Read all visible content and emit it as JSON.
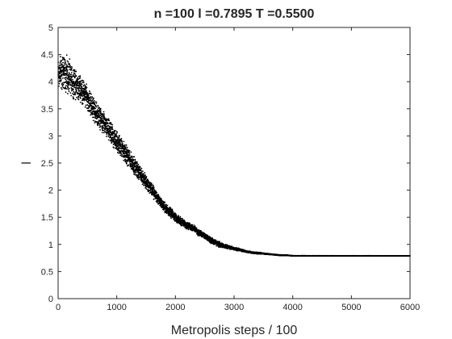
{
  "chart_data": {
    "type": "scatter",
    "title": "n =100   l =0.7895   T =0.5500",
    "xlabel": "Metropolis steps / 100",
    "ylabel": "l",
    "xlim": [
      0,
      6000
    ],
    "ylim": [
      0,
      5
    ],
    "xticks": [
      0,
      1000,
      2000,
      3000,
      4000,
      5000,
      6000
    ],
    "yticks": [
      0,
      0.5,
      1,
      1.5,
      2,
      2.5,
      3,
      3.5,
      4,
      4.5,
      5
    ],
    "grid": false,
    "marker_color": "#000000",
    "series": [
      {
        "x": [
          0,
          100,
          200,
          300,
          400,
          500,
          600,
          700,
          800,
          900,
          1000,
          1100,
          1200,
          1300,
          1400,
          1500,
          1600,
          1700,
          1800,
          1900,
          2000,
          2100,
          2200,
          2300,
          2400,
          2500,
          2600,
          2700,
          2800,
          2900,
          3000,
          3100,
          3200,
          3300,
          3400,
          3500,
          3600,
          3700,
          3800,
          3900,
          4000,
          4500,
          5000,
          5500,
          6000
        ],
        "y": [
          4.15,
          4.2,
          4.05,
          3.95,
          3.85,
          3.7,
          3.5,
          3.35,
          3.2,
          3.05,
          2.9,
          2.75,
          2.6,
          2.45,
          2.3,
          2.15,
          2.0,
          1.85,
          1.7,
          1.6,
          1.5,
          1.42,
          1.35,
          1.3,
          1.22,
          1.15,
          1.08,
          1.02,
          0.98,
          0.95,
          0.92,
          0.9,
          0.87,
          0.85,
          0.84,
          0.83,
          0.82,
          0.81,
          0.8,
          0.8,
          0.79,
          0.79,
          0.79,
          0.79,
          0.79
        ],
        "spread": [
          0.35,
          0.4,
          0.38,
          0.3,
          0.28,
          0.25,
          0.24,
          0.23,
          0.22,
          0.22,
          0.22,
          0.2,
          0.2,
          0.18,
          0.17,
          0.15,
          0.14,
          0.12,
          0.11,
          0.1,
          0.09,
          0.08,
          0.08,
          0.07,
          0.07,
          0.06,
          0.06,
          0.06,
          0.05,
          0.04,
          0.03,
          0.03,
          0.02,
          0.02,
          0.02,
          0.015,
          0.01,
          0.01,
          0.008,
          0.006,
          0.004,
          0.003,
          0.002,
          0.002,
          0.002
        ]
      }
    ]
  }
}
